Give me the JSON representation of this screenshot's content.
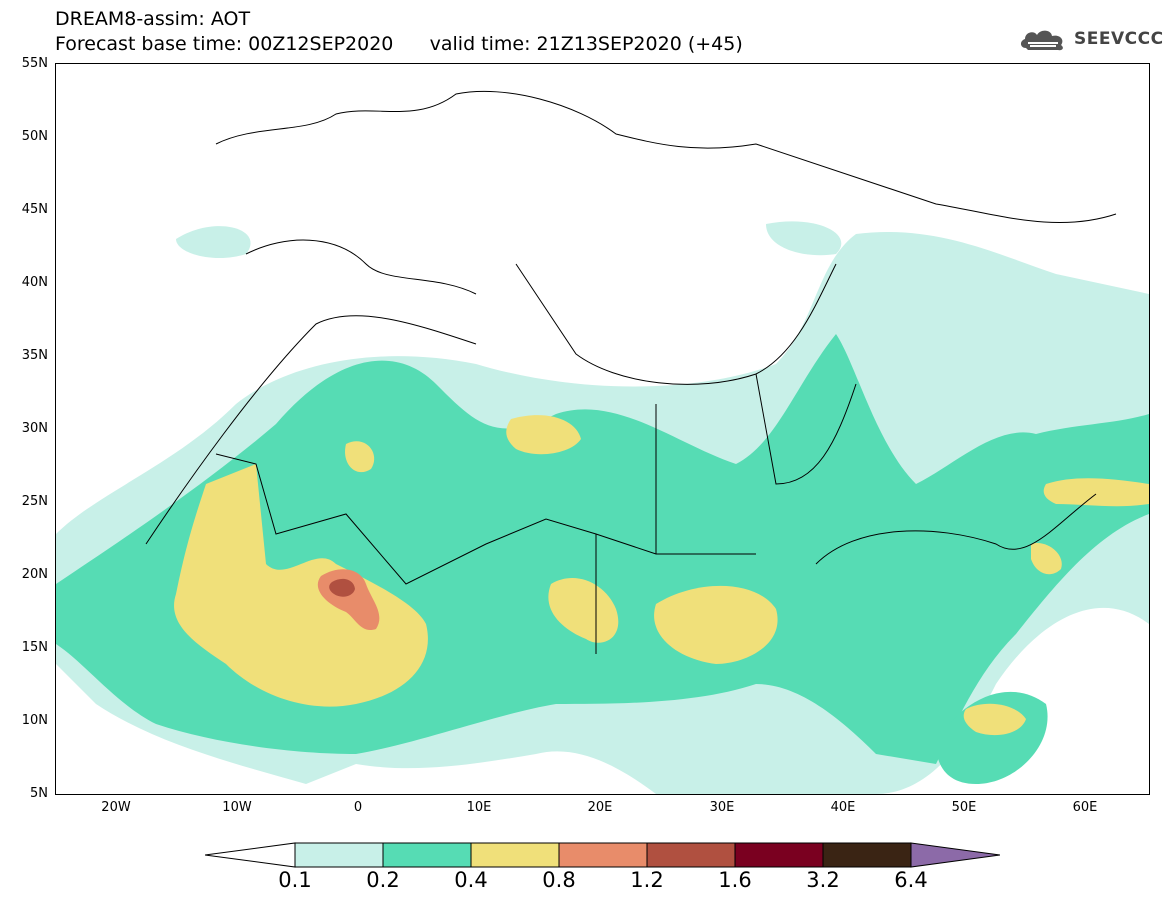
{
  "header": {
    "title_line1": "DREAM8-assim: AOT",
    "title_line2": "Forecast base time: 00Z12SEP2020      valid time: 21Z13SEP2020 (+45)"
  },
  "brand": {
    "name": "SEEVCCC",
    "icon": "cloud-logo-icon"
  },
  "map": {
    "lat_labels": [
      "55N",
      "50N",
      "45N",
      "40N",
      "35N",
      "30N",
      "25N",
      "20N",
      "15N",
      "10N",
      "5N"
    ],
    "lon_labels": [
      "20W",
      "10W",
      "0",
      "10E",
      "20E",
      "30E",
      "40E",
      "50E",
      "60E"
    ]
  },
  "colorbar": {
    "labels": [
      "0.1",
      "0.2",
      "0.4",
      "0.8",
      "1.2",
      "1.6",
      "3.2",
      "6.4"
    ],
    "colors": [
      "#ffffff",
      "#c8f0e8",
      "#56dcb4",
      "#f0e07a",
      "#e88c6a",
      "#b05040",
      "#7a0020",
      "#3a2414",
      "#8c6aa8"
    ]
  }
}
